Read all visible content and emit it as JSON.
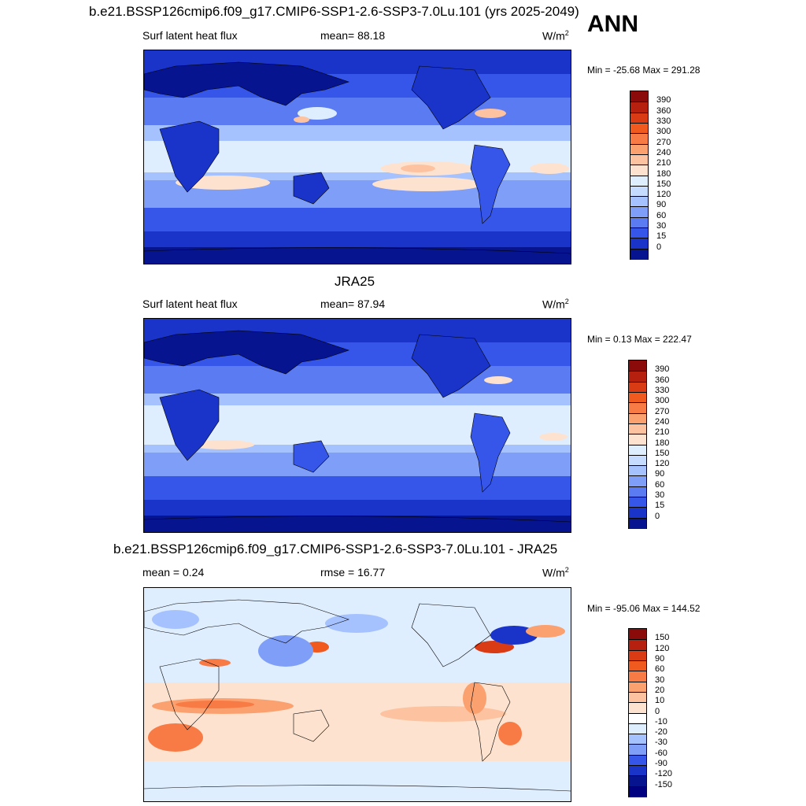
{
  "header": {
    "title": "b.e21.BSSP126cmip6.f09_g17.CMIP6-SSP1-2.6-SSP3-7.0Lu.101 (yrs 2025-2049)",
    "season": "ANN"
  },
  "panels": [
    {
      "id": "model",
      "title": "",
      "left_label": "Surf latent heat flux",
      "center_label": "mean=  88.18",
      "units_base": "W/m",
      "units_exp": "2",
      "minmax": "Min = -25.68 Max = 291.28",
      "colorbar_labels": [
        "390",
        "360",
        "330",
        "300",
        "270",
        "240",
        "210",
        "180",
        "150",
        "120",
        "90",
        "60",
        "30",
        "15",
        "0"
      ],
      "colors": [
        "#8b0a0a",
        "#b5200f",
        "#d93b14",
        "#f05a1e",
        "#f87a45",
        "#fba06f",
        "#fdc29f",
        "#fde3cf",
        "#dfeeff",
        "#c5dbff",
        "#a5c2ff",
        "#7f9ef7",
        "#5b7bf2",
        "#3556e8",
        "#1a33c9",
        "#06148f"
      ]
    },
    {
      "id": "obs",
      "title": "JRA25",
      "left_label": "Surf latent heat flux",
      "center_label": "mean=  87.94",
      "units_base": "W/m",
      "units_exp": "2",
      "minmax": "Min =   0.13 Max = 222.47",
      "colorbar_labels": [
        "390",
        "360",
        "330",
        "300",
        "270",
        "240",
        "210",
        "180",
        "150",
        "120",
        "90",
        "60",
        "30",
        "15",
        "0"
      ],
      "colors": [
        "#8b0a0a",
        "#b5200f",
        "#d93b14",
        "#f05a1e",
        "#f87a45",
        "#fba06f",
        "#fdc29f",
        "#fde3cf",
        "#dfeeff",
        "#c5dbff",
        "#a5c2ff",
        "#7f9ef7",
        "#5b7bf2",
        "#3556e8",
        "#1a33c9",
        "#06148f"
      ]
    },
    {
      "id": "diff",
      "title": "b.e21.BSSP126cmip6.f09_g17.CMIP6-SSP1-2.6-SSP3-7.0Lu.101 - JRA25",
      "left_label": "mean =   0.24",
      "center_label": "rmse =  16.77",
      "units_base": "W/m",
      "units_exp": "2",
      "minmax": "Min = -95.06 Max = 144.52",
      "colorbar_labels": [
        "150",
        "120",
        "90",
        "60",
        "30",
        "20",
        "10",
        "0",
        "-10",
        "-20",
        "-30",
        "-60",
        "-90",
        "-120",
        "-150"
      ],
      "colors": [
        "#8b0a0a",
        "#b5200f",
        "#d93b14",
        "#f05a1e",
        "#f87a45",
        "#fba06f",
        "#fdc29f",
        "#fde3cf",
        "#ffffff",
        "#dfeeff",
        "#a5c2ff",
        "#7f9ef7",
        "#3556e8",
        "#1a33c9",
        "#06148f",
        "#000080"
      ]
    }
  ]
}
